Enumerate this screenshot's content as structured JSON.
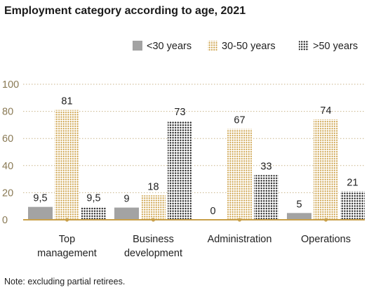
{
  "chart_data": {
    "type": "bar",
    "title": "Employment category according to age, 2021",
    "note": "Note: excluding partial retirees.",
    "categories": [
      [
        "Top",
        "management"
      ],
      [
        "Business",
        "development"
      ],
      [
        "Administration"
      ],
      [
        "Operations"
      ]
    ],
    "series": [
      {
        "name": "<30 years",
        "values": [
          9.5,
          9,
          0,
          5
        ],
        "labels": [
          "9,5",
          "9",
          "0",
          "5"
        ],
        "color": "#a3a3a3",
        "pattern": "solid"
      },
      {
        "name": "30-50 years",
        "values": [
          81,
          18,
          67,
          74
        ],
        "labels": [
          "81",
          "18",
          "67",
          "74"
        ],
        "color": "#c99a3a",
        "pattern": "dots"
      },
      {
        "name": ">50 years",
        "values": [
          9.5,
          73,
          33,
          21
        ],
        "labels": [
          "9,5",
          "73",
          "33",
          "21"
        ],
        "color": "#1a1a1a",
        "pattern": "dots"
      }
    ],
    "yticks": [
      0,
      20,
      40,
      60,
      80,
      100
    ],
    "ylim": [
      0,
      100
    ],
    "grid": true,
    "legend_position": "top-right",
    "axis_color": "#c9a04a",
    "grid_color": "#c9b58a"
  }
}
